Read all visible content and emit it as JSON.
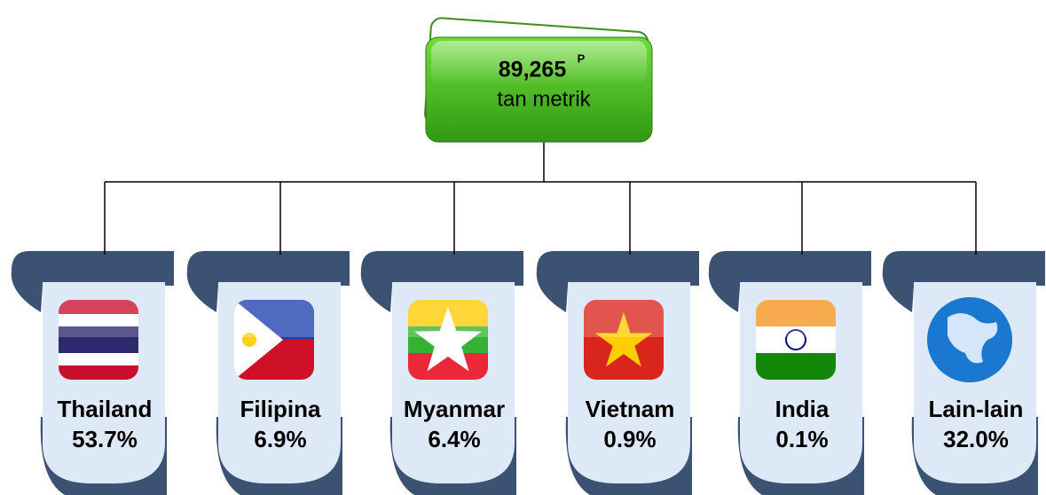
{
  "total": {
    "value": "89,265",
    "superscript": "P",
    "unit": "tan metrik"
  },
  "nodes": [
    {
      "name": "Thailand",
      "share": "53.7%"
    },
    {
      "name": "Filipina",
      "share": "6.9%"
    },
    {
      "name": "Myanmar",
      "share": "6.4%"
    },
    {
      "name": "Vietnam",
      "share": "0.9%"
    },
    {
      "name": "India",
      "share": "0.1%"
    },
    {
      "name": "Lain-lain",
      "share": "32.0%"
    }
  ]
}
